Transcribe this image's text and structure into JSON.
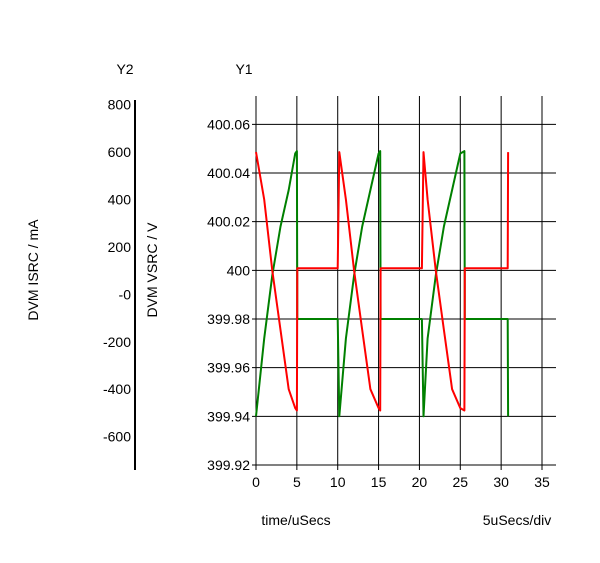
{
  "chart_data": {
    "type": "line",
    "y2_axis_header": "Y2",
    "y1_axis_header": "Y1",
    "y2_label": "DVM ISRC / mA",
    "y1_label": "DVM VSRC / V",
    "xlabel": "time/uSecs",
    "x_scale_note": "5uSecs/div",
    "xlim": [
      0,
      35
    ],
    "x_ticks": [
      0,
      5,
      10,
      15,
      20,
      25,
      30,
      35
    ],
    "x_tick_labels": [
      "0",
      "5",
      "10",
      "15",
      "20",
      "25",
      "30",
      "35"
    ],
    "y1lim": [
      399.92,
      400.07
    ],
    "y1_ticks": [
      399.92,
      399.94,
      399.96,
      399.98,
      400,
      400.02,
      400.04,
      400.06
    ],
    "y1_tick_labels": [
      "399.92",
      "399.94",
      "399.96",
      "399.98",
      "400",
      "400.02",
      "400.04",
      "400.06"
    ],
    "y2lim": [
      -720,
      820
    ],
    "y2_ticks": [
      -600,
      -400,
      -200,
      0,
      200,
      400,
      600,
      800
    ],
    "y2_tick_labels": [
      "-600",
      "-400",
      "-200",
      "-0",
      "200",
      "400",
      "600",
      "800"
    ],
    "grid": true,
    "colors": {
      "vsrc": "#008000",
      "isrc": "#ff0000",
      "grid": "#000000"
    },
    "series": [
      {
        "axis": "y1",
        "color": "#008000",
        "x": [
          0,
          1,
          2,
          3,
          4,
          4.8,
          5,
          5.05,
          10,
          10.2,
          11,
          12,
          13,
          14,
          15,
          15.2,
          15.25,
          20.3,
          20.5,
          21,
          22,
          23,
          24,
          25,
          25.5,
          25.55,
          30.8,
          30.85
        ],
        "y": [
          399.94,
          399.972,
          399.998,
          400.018,
          400.033,
          400.048,
          400.049,
          399.98,
          399.98,
          399.94,
          399.972,
          399.998,
          400.018,
          400.033,
          400.048,
          400.049,
          399.98,
          399.98,
          399.94,
          399.972,
          399.998,
          400.018,
          400.033,
          400.048,
          400.049,
          399.98,
          399.98,
          399.94
        ]
      },
      {
        "axis": "y2",
        "color": "#ff0000",
        "x": [
          0,
          1,
          2,
          3,
          4,
          4.8,
          5,
          5.05,
          10,
          10.2,
          11,
          12,
          13,
          14,
          15,
          15.2,
          15.25,
          20.3,
          20.5,
          21,
          22,
          23,
          24,
          25,
          25.5,
          25.55,
          30.8,
          30.85
        ],
        "y": [
          600,
          400,
          100,
          -150,
          -400,
          -480,
          -490,
          110,
          110,
          600,
          400,
          100,
          -150,
          -400,
          -480,
          -490,
          110,
          110,
          600,
          400,
          100,
          -150,
          -400,
          -480,
          -490,
          110,
          110,
          600
        ]
      }
    ]
  }
}
